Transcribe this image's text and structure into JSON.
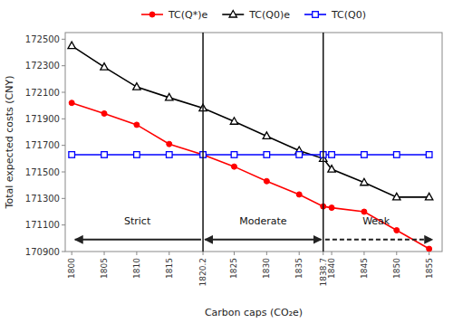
{
  "chart_data": {
    "type": "line",
    "x_label": "Carbon caps (CO₂e)",
    "y_label": "Total expected costs (CNY)",
    "x": [
      1800,
      1805,
      1810,
      1815,
      1820.2,
      1825,
      1830,
      1835,
      1838.7,
      1840,
      1845,
      1850,
      1855
    ],
    "series": [
      {
        "name": "TC(Q*)e",
        "color": "red",
        "marker": "circle",
        "values": [
          172020,
          171940,
          171855,
          171710,
          171630,
          171540,
          171430,
          171330,
          171240,
          171230,
          171200,
          171060,
          170920
        ]
      },
      {
        "name": "TC(Q0)e",
        "color": "black",
        "marker": "triangle",
        "values": [
          172450,
          172290,
          172140,
          172060,
          171980,
          171880,
          171770,
          171660,
          171600,
          171520,
          171420,
          171310,
          171310
        ]
      },
      {
        "name": "TC(Q0)",
        "color": "blue",
        "marker": "square",
        "values": [
          171630,
          171630,
          171630,
          171630,
          171630,
          171630,
          171630,
          171630,
          171630,
          171630,
          171630,
          171630,
          171630
        ]
      }
    ],
    "xlim": [
      1799,
      1857
    ],
    "ylim": [
      170900,
      172550
    ],
    "xticks": [
      1800,
      1805,
      1810,
      1815,
      1820.2,
      1825,
      1830,
      1835,
      1838.7,
      1840,
      1845,
      1850,
      1855
    ],
    "yticks": [
      170900,
      171100,
      171300,
      171500,
      171700,
      171900,
      172100,
      172300,
      172500
    ],
    "vlines": [
      1820.2,
      1838.7
    ],
    "annotations": [
      {
        "text": "Strict",
        "x": 1810.1,
        "y": 171130
      },
      {
        "text": "Moderate",
        "x": 1829.45,
        "y": 171130
      },
      {
        "text": "Weak",
        "x": 1846.85,
        "y": 171130
      }
    ],
    "arrows": [
      {
        "x_start": 1819.9,
        "x_end": 1800.5,
        "y": 170990,
        "line_style": "solid",
        "marker": "arrow"
      },
      {
        "x_start": 1820.5,
        "x_end": 1838.4,
        "y": 170990,
        "line_style": "solid",
        "marker": "double-arrow"
      },
      {
        "x_start": 1839.0,
        "x_end": 1855.5,
        "y": 170990,
        "line_style": "dashed",
        "marker": "arrow"
      }
    ],
    "grid": false,
    "legend": "top"
  }
}
